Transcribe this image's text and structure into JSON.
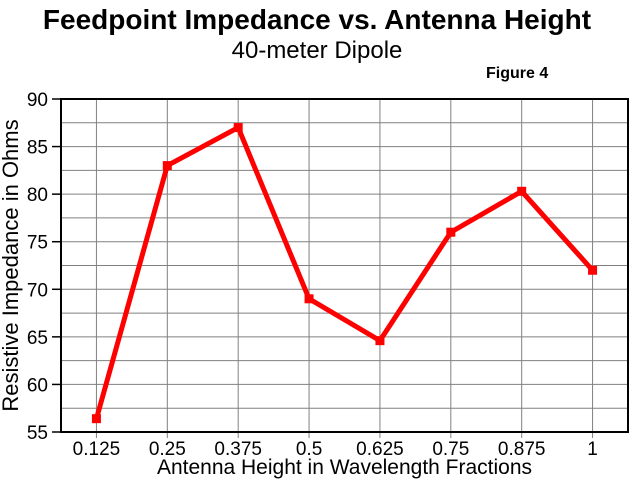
{
  "header": {
    "title": "Feedpoint Impedance vs. Antenna Height",
    "subtitle": "40-meter Dipole",
    "figure_label": "Figure 4"
  },
  "chart_data": {
    "type": "line",
    "title": "Feedpoint Impedance vs. Antenna Height",
    "subtitle": "40-meter Dipole",
    "annotation": "Figure 4",
    "xlabel": "Antenna Height in Wavelength Fractions",
    "ylabel": "Resistive Impedance in Ohms",
    "categories": [
      "0.125",
      "0.25",
      "0.375",
      "0.5",
      "0.625",
      "0.75",
      "0.875",
      "1"
    ],
    "series": [
      {
        "name": "Resistive Impedance",
        "values": [
          56.4,
          83,
          87,
          69,
          64.6,
          76,
          80.3,
          72
        ]
      }
    ],
    "ylim": [
      55,
      90
    ],
    "yticks": [
      55,
      60,
      65,
      70,
      75,
      80,
      85,
      90
    ],
    "ytick_step": 5,
    "ygrid_step": 2.5,
    "grid": true,
    "legend": "none",
    "marker_style": "square",
    "colors": {
      "line": "#FF0000",
      "marker": "#FF0000",
      "grid": "#808080",
      "axis": "#000000",
      "text": "#000000",
      "background": "#FFFFFF"
    }
  }
}
